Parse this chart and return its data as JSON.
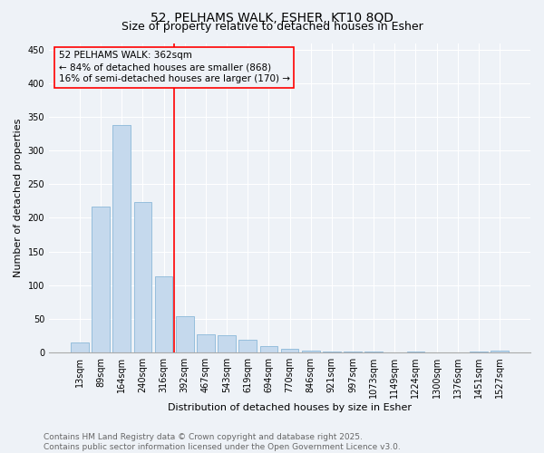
{
  "title_line1": "52, PELHAMS WALK, ESHER, KT10 8QD",
  "title_line2": "Size of property relative to detached houses in Esher",
  "xlabel": "Distribution of detached houses by size in Esher",
  "ylabel": "Number of detached properties",
  "categories": [
    "13sqm",
    "89sqm",
    "164sqm",
    "240sqm",
    "316sqm",
    "392sqm",
    "467sqm",
    "543sqm",
    "619sqm",
    "694sqm",
    "770sqm",
    "846sqm",
    "921sqm",
    "997sqm",
    "1073sqm",
    "1149sqm",
    "1224sqm",
    "1300sqm",
    "1376sqm",
    "1451sqm",
    "1527sqm"
  ],
  "values": [
    15,
    217,
    338,
    224,
    113,
    54,
    27,
    26,
    19,
    9,
    6,
    3,
    1,
    1,
    1,
    0,
    1,
    0,
    0,
    1,
    2
  ],
  "bar_color": "#c5d9ed",
  "bar_edge_color": "#7bafd4",
  "vline_color": "red",
  "annotation_text": "52 PELHAMS WALK: 362sqm\n← 84% of detached houses are smaller (868)\n16% of semi-detached houses are larger (170) →",
  "annotation_box_edgecolor": "red",
  "ylim": [
    0,
    460
  ],
  "yticks": [
    0,
    50,
    100,
    150,
    200,
    250,
    300,
    350,
    400,
    450
  ],
  "background_color": "#eef2f7",
  "grid_color": "white",
  "footer_line1": "Contains HM Land Registry data © Crown copyright and database right 2025.",
  "footer_line2": "Contains public sector information licensed under the Open Government Licence v3.0.",
  "title_fontsize": 10,
  "subtitle_fontsize": 9,
  "axis_label_fontsize": 8,
  "tick_fontsize": 7,
  "annotation_fontsize": 7.5,
  "footer_fontsize": 6.5
}
